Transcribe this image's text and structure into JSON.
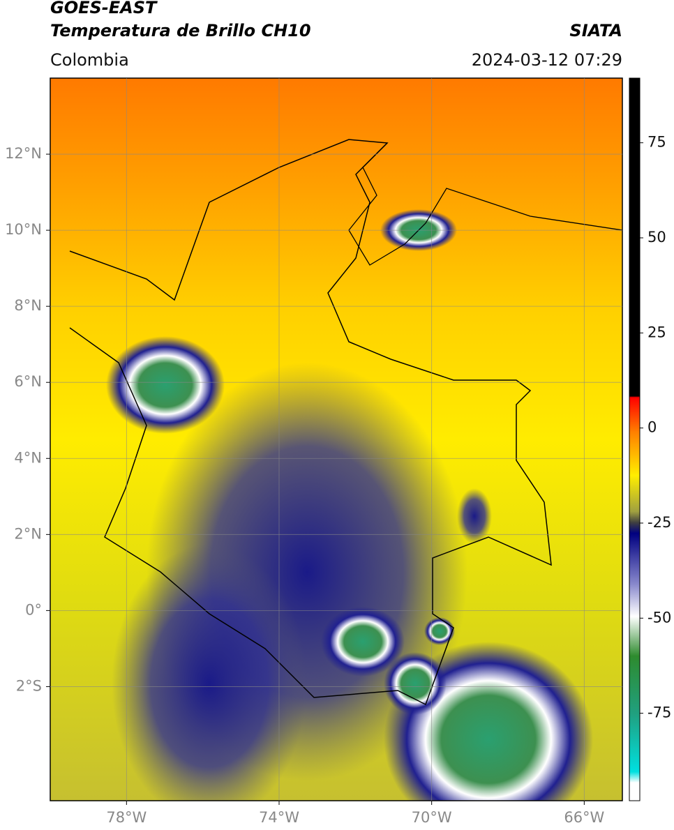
{
  "header": {
    "title": "GOES-EAST",
    "subtitle": "Temperatura de Brillo CH10",
    "source": "SIATA",
    "region": "Colombia",
    "datetime": "2024-03-12 07:29"
  },
  "map": {
    "xlim": [
      -80,
      -65
    ],
    "ylim": [
      -5,
      14
    ],
    "grid": true,
    "lon_ticks": [
      {
        "value": -78,
        "label": "78°W"
      },
      {
        "value": -74,
        "label": "74°W"
      },
      {
        "value": -70,
        "label": "70°W"
      },
      {
        "value": -66,
        "label": "66°W"
      }
    ],
    "lat_ticks": [
      {
        "value": 12,
        "label": "12°N"
      },
      {
        "value": 10,
        "label": "10°N"
      },
      {
        "value": 8,
        "label": "8°N"
      },
      {
        "value": 6,
        "label": "6°N"
      },
      {
        "value": 4,
        "label": "4°N"
      },
      {
        "value": 2,
        "label": "2°N"
      },
      {
        "value": 0,
        "label": "0°"
      },
      {
        "value": -2,
        "label": "2°S"
      }
    ]
  },
  "colorbar": {
    "lim": [
      -98,
      92
    ],
    "ticks": [
      75,
      50,
      25,
      0,
      -25,
      -50,
      -75
    ]
  }
}
